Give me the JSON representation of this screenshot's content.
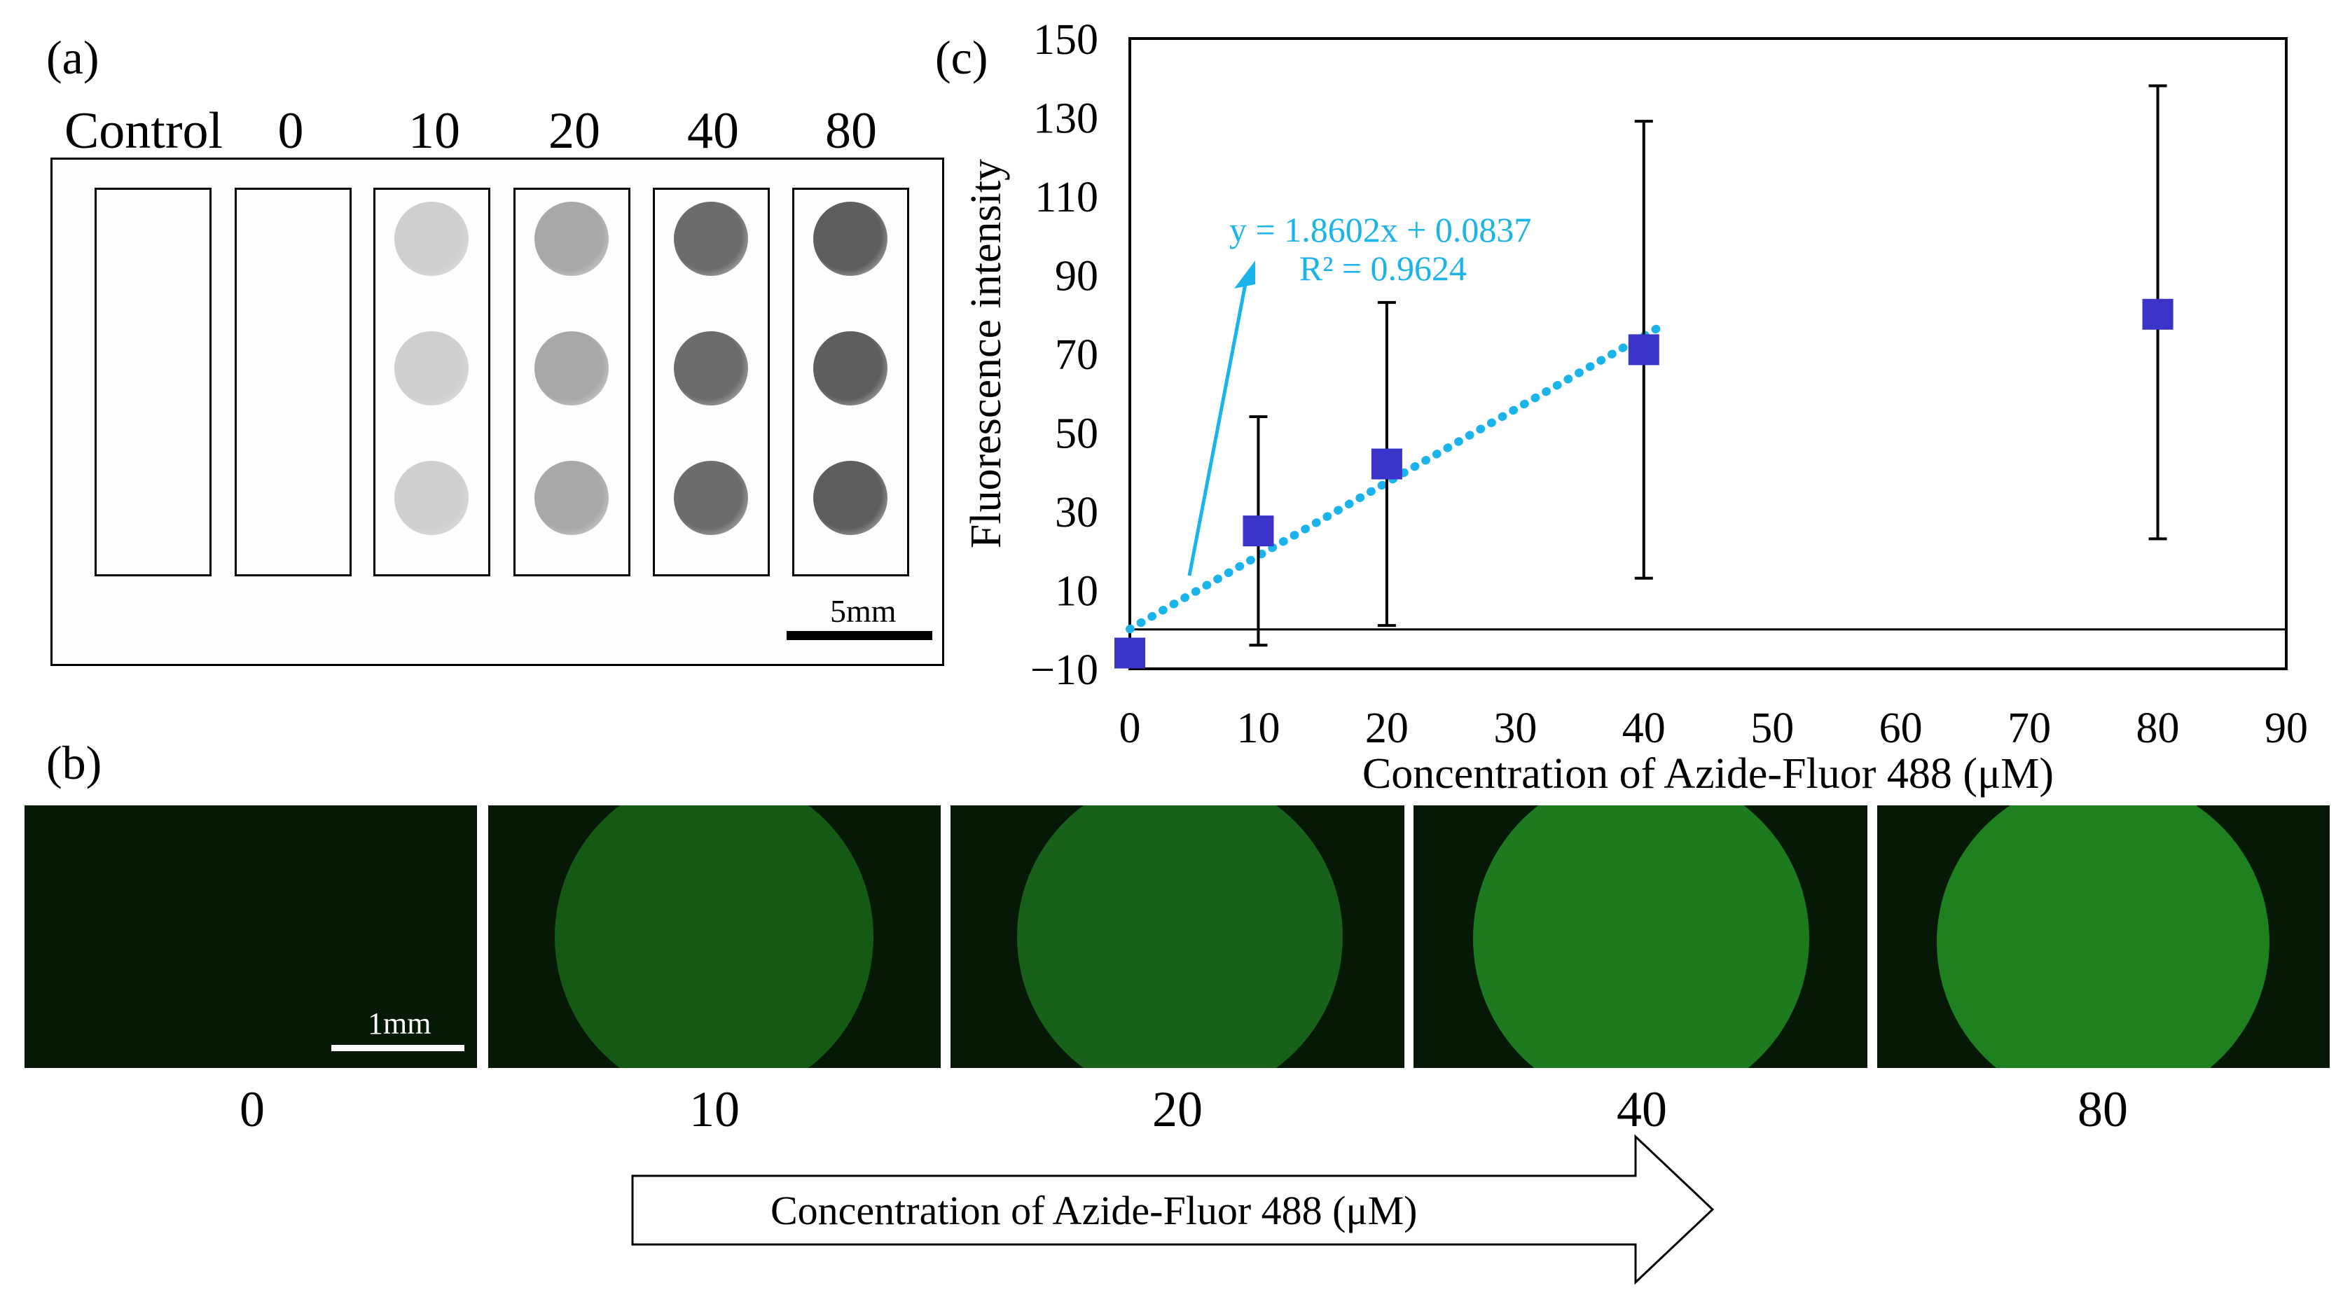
{
  "panel_a": {
    "tag": "(a)",
    "columns": [
      "Control",
      "0",
      "10",
      "20",
      "40",
      "80"
    ],
    "spot_gray": [
      null,
      null,
      "#cfcfcf",
      "#a8a8a8",
      "#6c6c6c",
      "#5e5e5e"
    ],
    "scale_label": "5mm"
  },
  "panel_b": {
    "tag": "(b)",
    "concentrations": [
      "0",
      "10",
      "20",
      "40",
      "80"
    ],
    "disk_colors": [
      "#061906",
      "#145a14",
      "#17611a",
      "#1e7a1e",
      "#1f801f"
    ],
    "scale_label": "1mm",
    "arrow_label": "Concentration of Azide-Fluor 488 (μM)"
  },
  "panel_c": {
    "tag": "(c)"
  },
  "chart_data": {
    "type": "scatter",
    "title": "",
    "xlabel": "Concentration of Azide-Fluor 488 (μM)",
    "ylabel": "Fluorescence intensity",
    "xlim": [
      0,
      90
    ],
    "ylim": [
      -10,
      150
    ],
    "xticks": [
      0,
      10,
      20,
      30,
      40,
      50,
      60,
      70,
      80,
      90
    ],
    "yticks": [
      -10,
      10,
      30,
      50,
      70,
      90,
      110,
      130,
      150
    ],
    "series": [
      {
        "x": [
          0,
          10,
          20,
          40,
          80
        ],
        "y": [
          -6,
          25,
          42,
          71,
          80
        ],
        "err_low": [
          null,
          -4,
          1,
          13,
          23
        ],
        "err_high": [
          null,
          54,
          83,
          129,
          138
        ],
        "color": "#3a35c8"
      }
    ],
    "trendline": {
      "slope": 1.8602,
      "intercept": 0.0837,
      "x_range": [
        0,
        41
      ],
      "color": "#1ab3ea",
      "equation": "y = 1.8602x + 0.0837",
      "r2": "R² = 0.9624"
    },
    "grid": false,
    "legend": "none"
  }
}
